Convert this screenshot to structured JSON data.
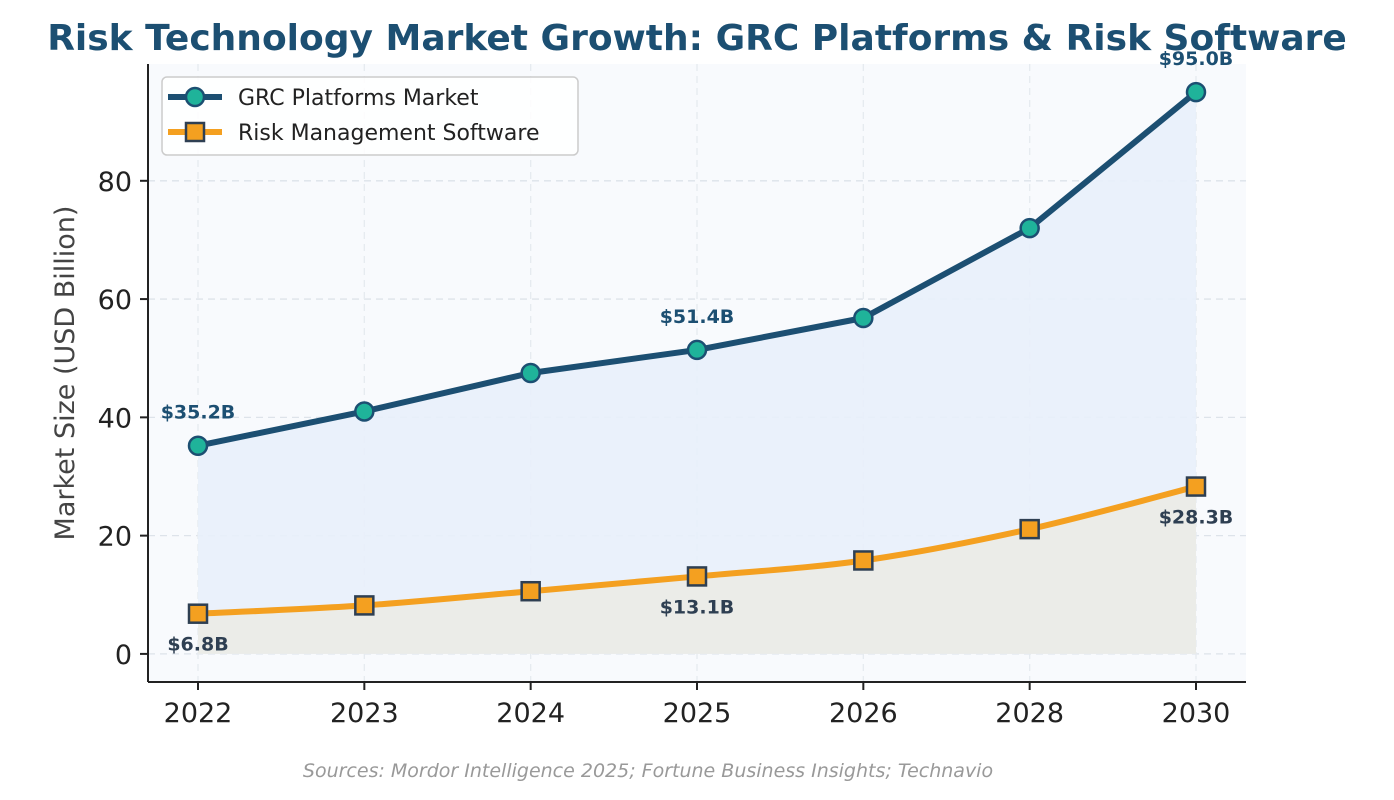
{
  "chart_data": {
    "type": "line",
    "title": "Risk Technology Market Growth: GRC Platforms & Risk Software",
    "ylabel": "Market Size (USD Billion)",
    "xlabel": "",
    "x": [
      "2022",
      "2023",
      "2024",
      "2025",
      "2026",
      "2028",
      "2030"
    ],
    "ylim": [
      -4.75,
      99.75
    ],
    "yticks": [
      0,
      20,
      40,
      60,
      80
    ],
    "grid": true,
    "legend": "upper-left",
    "source": "Sources: Mordor Intelligence 2025; Fortune Business Insights; Technavio",
    "series": [
      {
        "name": "GRC Platforms Market",
        "values": [
          35.2,
          41.0,
          47.5,
          51.4,
          56.8,
          72.0,
          95.0
        ],
        "color": "#1c4f72",
        "marker": "circle",
        "marker_color": "#1fb39a",
        "fill": "#e8effb",
        "labels": [
          {
            "index": 0,
            "text": "$35.2B"
          },
          {
            "index": 3,
            "text": "$51.4B"
          },
          {
            "index": 6,
            "text": "$95.0B"
          }
        ]
      },
      {
        "name": "Risk Management Software",
        "values": [
          6.8,
          8.2,
          10.6,
          13.1,
          15.8,
          21.1,
          28.3
        ],
        "color": "#f4a020",
        "marker": "square",
        "marker_color": "#f4a020",
        "fill": "#ebebe6",
        "labels": [
          {
            "index": 0,
            "text": "$6.8B"
          },
          {
            "index": 3,
            "text": "$13.1B"
          },
          {
            "index": 6,
            "text": "$28.3B"
          }
        ]
      }
    ]
  }
}
